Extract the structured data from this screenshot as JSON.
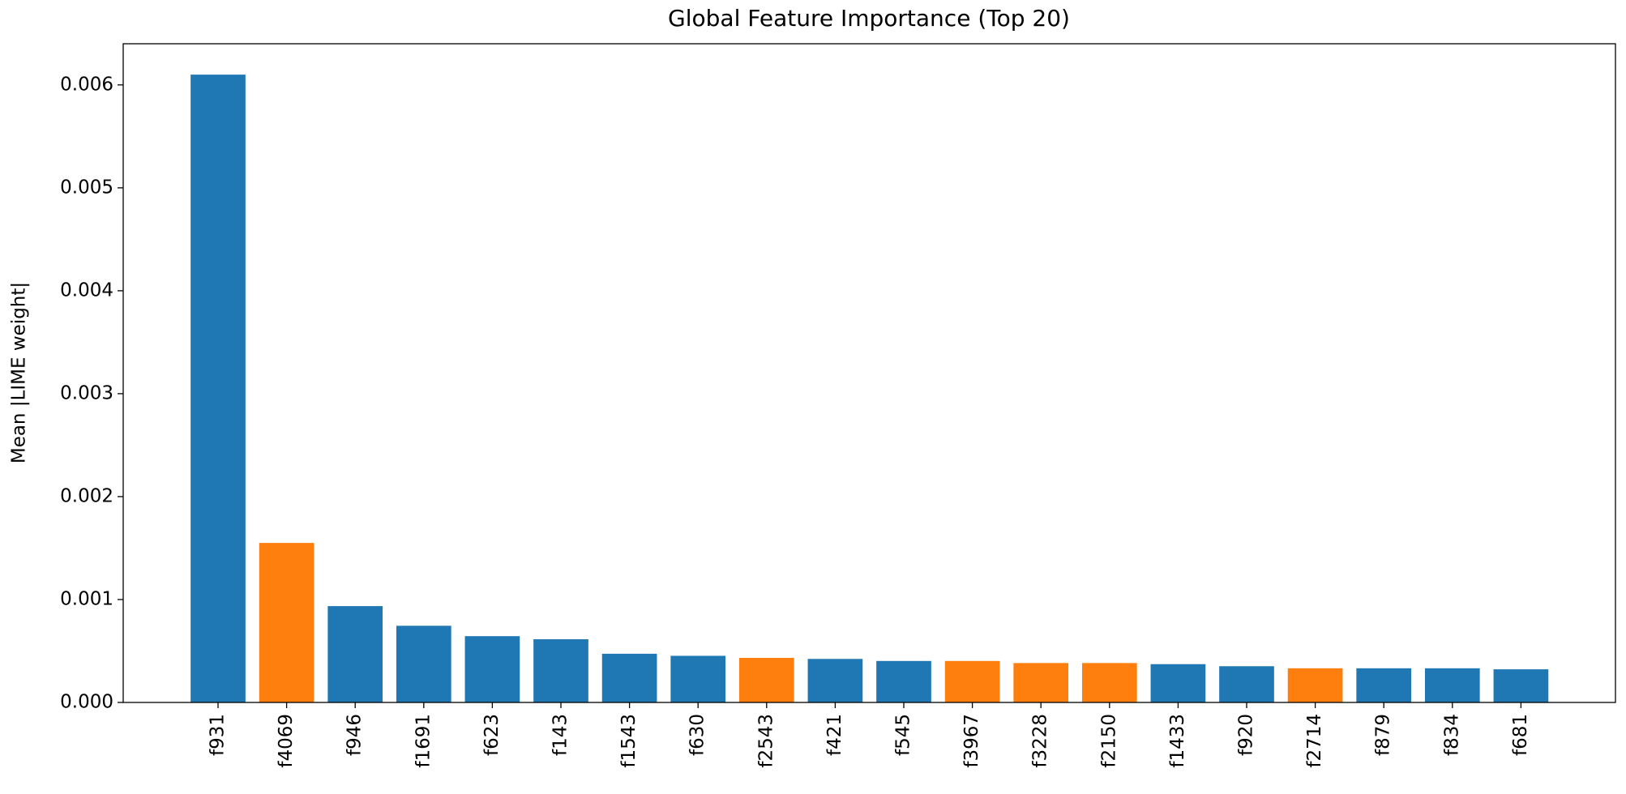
{
  "chart_data": {
    "type": "bar",
    "title": "Global Feature Importance (Top 20)",
    "y_label": "Mean |LIME weight|",
    "categories": [
      "f931",
      "f4069",
      "f946",
      "f1691",
      "f623",
      "f143",
      "f1543",
      "f630",
      "f2543",
      "f421",
      "f545",
      "f3967",
      "f3228",
      "f2150",
      "f1433",
      "f920",
      "f2714",
      "f879",
      "f834",
      "f681"
    ],
    "values": [
      0.0061,
      0.00155,
      0.000936,
      0.000745,
      0.000644,
      0.000614,
      0.000473,
      0.000453,
      0.000433,
      0.000423,
      0.000403,
      0.000403,
      0.000383,
      0.000383,
      0.000372,
      0.000352,
      0.000332,
      0.000332,
      0.000332,
      0.000322
    ],
    "colors": [
      "#1f77b4",
      "#ff7f0e",
      "#1f77b4",
      "#1f77b4",
      "#1f77b4",
      "#1f77b4",
      "#1f77b4",
      "#1f77b4",
      "#ff7f0e",
      "#1f77b4",
      "#1f77b4",
      "#ff7f0e",
      "#ff7f0e",
      "#ff7f0e",
      "#1f77b4",
      "#1f77b4",
      "#ff7f0e",
      "#1f77b4",
      "#1f77b4",
      "#1f77b4"
    ],
    "ylim": [
      0,
      0.0064
    ],
    "yticks": [
      {
        "value": 0,
        "label": "0.000"
      },
      {
        "value": 0.001,
        "label": "0.001"
      },
      {
        "value": 0.002,
        "label": "0.002"
      },
      {
        "value": 0.003,
        "label": "0.003"
      },
      {
        "value": 0.004,
        "label": "0.004"
      },
      {
        "value": 0.005,
        "label": "0.005"
      },
      {
        "value": 0.006,
        "label": "0.006"
      }
    ],
    "grid": false
  }
}
